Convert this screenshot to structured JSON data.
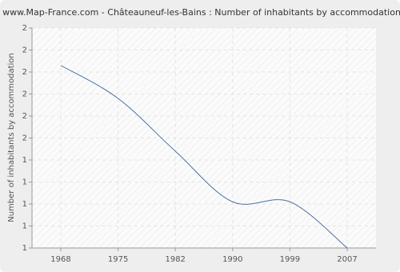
{
  "chart_data": {
    "type": "line",
    "title": "www.Map-France.com - Châteauneuf-les-Bains : Number of inhabitants by accommodation",
    "y_label": "Number of inhabitants by accommodation",
    "categories": [
      "1968",
      "1975",
      "1982",
      "1990",
      "1999",
      "2007"
    ],
    "series": [
      {
        "name": "Number of inhabitants by accommodation",
        "color": "#4a72a8",
        "values": [
          1.83,
          1.68,
          1.44,
          1.21,
          1.21,
          1.0
        ]
      }
    ],
    "ylim": [
      1,
      2
    ],
    "yticks": [
      {
        "value": 1.0,
        "label": "1"
      },
      {
        "value": 1.1,
        "label": "1"
      },
      {
        "value": 1.2,
        "label": "1"
      },
      {
        "value": 1.3,
        "label": "1"
      },
      {
        "value": 1.4,
        "label": "1"
      },
      {
        "value": 1.5,
        "label": "2"
      },
      {
        "value": 1.6,
        "label": "2"
      },
      {
        "value": 1.7,
        "label": "2"
      },
      {
        "value": 1.8,
        "label": "2"
      },
      {
        "value": 1.9,
        "label": "2"
      },
      {
        "value": 2.0,
        "label": "2"
      }
    ],
    "grid": true
  }
}
